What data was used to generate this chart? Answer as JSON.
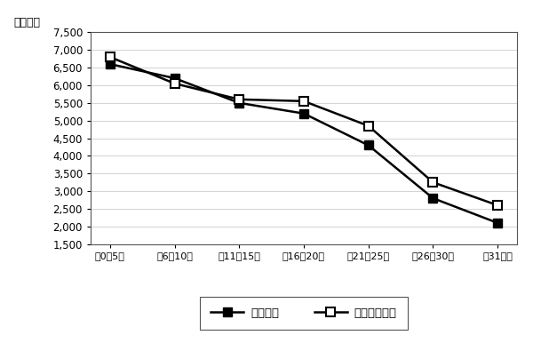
{
  "categories": [
    "範0～5年",
    "範6～10年",
    "範11～15年",
    "範16～20年",
    "範21～25年",
    "範26～30年",
    "範31年～"
  ],
  "series_keiyaku": [
    6600,
    6200,
    5500,
    5200,
    4300,
    2800,
    2100
  ],
  "series_shinki": [
    6800,
    6050,
    5600,
    5550,
    4850,
    3250,
    2600
  ],
  "ylabel": "（万円）",
  "ylim_min": 1500,
  "ylim_max": 7500,
  "yticks": [
    1500,
    2000,
    2500,
    3000,
    3500,
    4000,
    4500,
    5000,
    5500,
    6000,
    6500,
    7000,
    7500
  ],
  "legend_keiyaku": "成約物件",
  "legend_shinki": "新規登録物件",
  "line_color": "#000000",
  "bg_color": "#ffffff",
  "grid_color": "#cccccc",
  "fig_width": 6.0,
  "fig_height": 4.04,
  "dpi": 100
}
